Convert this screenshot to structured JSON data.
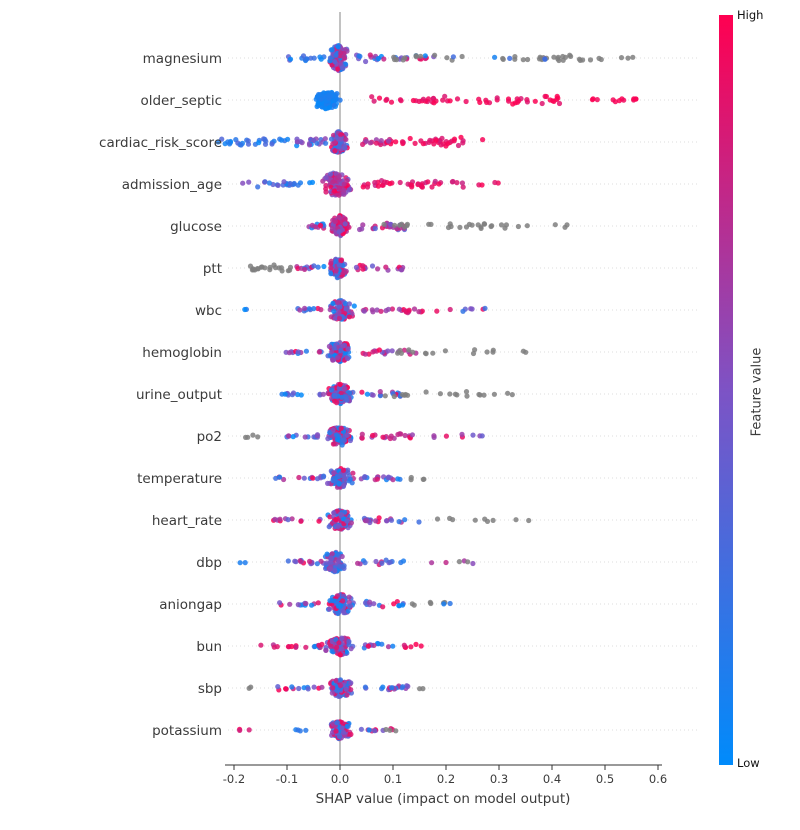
{
  "page": {
    "background": "#ffffff"
  },
  "chart_data": {
    "type": "scatter",
    "variant": "shap-summary-beeswarm",
    "title": "",
    "xlabel": "SHAP value (impact on model output)",
    "ylabel": "",
    "xlim": [
      -0.27,
      0.63
    ],
    "xticks": [
      -0.2,
      -0.1,
      0.0,
      0.1,
      0.2,
      0.3,
      0.4,
      0.5,
      0.6
    ],
    "grid": "dotted-horizontal",
    "zero_line_color": "#999999",
    "gray_color": "#7f7f7f",
    "colorbar": {
      "label": "Feature value",
      "high_label": "High",
      "low_label": "Low",
      "color_high": "#ff0051",
      "color_mid": "#7d53c5",
      "color_low": "#008bfb"
    },
    "features": [
      {
        "name": "magnesium",
        "clusters": [
          {
            "n": 14,
            "x": [
              -0.1,
              -0.03
            ],
            "d": "u",
            "j": 3,
            "v": [
              0,
              0.45
            ]
          },
          {
            "n": 130,
            "x": [
              -0.025,
              0.02
            ],
            "d": "n",
            "j": 13,
            "v": [
              0,
              1
            ]
          },
          {
            "n": 26,
            "x": [
              0.03,
              0.18
            ],
            "d": "u",
            "j": 4,
            "v": [
              0,
              1
            ]
          },
          {
            "n": 40,
            "x": [
              0.1,
              0.5
            ],
            "d": "u",
            "j": 3,
            "v": "gray"
          },
          {
            "n": 5,
            "x": [
              0.2,
              0.42
            ],
            "d": "u",
            "j": 2,
            "v": [
              0,
              0.4
            ]
          },
          {
            "n": 3,
            "x": [
              0.53,
              0.585
            ],
            "d": "u",
            "j": 1,
            "v": "gray"
          }
        ]
      },
      {
        "name": "older_septic",
        "clusters": [
          {
            "n": 120,
            "x": [
              -0.055,
              0.005
            ],
            "d": "n",
            "j": 9,
            "v": [
              0,
              0.15
            ]
          },
          {
            "n": 55,
            "x": [
              0.05,
              0.42
            ],
            "d": "u",
            "j": 4,
            "v": [
              0.85,
              1
            ]
          },
          {
            "n": 12,
            "x": [
              0.43,
              0.57
            ],
            "d": "u",
            "j": 2,
            "v": [
              0.9,
              1
            ]
          }
        ]
      },
      {
        "name": "cardiac_risk_score",
        "clusters": [
          {
            "n": 28,
            "x": [
              -0.23,
              -0.1
            ],
            "d": "u",
            "j": 4,
            "v": [
              0,
              0.35
            ]
          },
          {
            "n": 22,
            "x": [
              -0.1,
              -0.025
            ],
            "d": "u",
            "j": 4,
            "v": [
              0,
              0.6
            ]
          },
          {
            "n": 95,
            "x": [
              -0.025,
              0.02
            ],
            "d": "n",
            "j": 11,
            "v": [
              0,
              1
            ]
          },
          {
            "n": 22,
            "x": [
              0.04,
              0.12
            ],
            "d": "u",
            "j": 3,
            "v": [
              0.6,
              1
            ]
          },
          {
            "n": 30,
            "x": [
              0.13,
              0.27
            ],
            "d": "u",
            "j": 5,
            "v": [
              0.8,
              1
            ]
          }
        ]
      },
      {
        "name": "admission_age",
        "clusters": [
          {
            "n": 24,
            "x": [
              -0.2,
              -0.05
            ],
            "d": "u",
            "j": 3,
            "v": [
              0,
              0.6
            ]
          },
          {
            "n": 115,
            "x": [
              -0.04,
              0.03
            ],
            "d": "n",
            "j": 12,
            "v": [
              0.4,
              1
            ]
          },
          {
            "n": 40,
            "x": [
              0.04,
              0.24
            ],
            "d": "u",
            "j": 4,
            "v": [
              0.75,
              1
            ]
          },
          {
            "n": 4,
            "x": [
              0.25,
              0.3
            ],
            "d": "u",
            "j": 2,
            "v": [
              0.85,
              1
            ]
          }
        ]
      },
      {
        "name": "glucose",
        "clusters": [
          {
            "n": 12,
            "x": [
              -0.06,
              -0.02
            ],
            "d": "u",
            "j": 3,
            "v": [
              0,
              1
            ]
          },
          {
            "n": 105,
            "x": [
              -0.02,
              0.02
            ],
            "d": "n",
            "j": 11,
            "v": [
              0.4,
              1
            ]
          },
          {
            "n": 28,
            "x": [
              0.03,
              0.13
            ],
            "d": "u",
            "j": 4,
            "v": [
              0.3,
              1
            ]
          },
          {
            "n": 26,
            "x": [
              0.08,
              0.32
            ],
            "d": "u",
            "j": 3,
            "v": "gray"
          },
          {
            "n": 5,
            "x": [
              0.33,
              0.46
            ],
            "d": "u",
            "j": 2,
            "v": "gray"
          }
        ]
      },
      {
        "name": "ptt",
        "clusters": [
          {
            "n": 20,
            "x": [
              -0.17,
              -0.09
            ],
            "d": "u",
            "j": 4,
            "v": "gray"
          },
          {
            "n": 12,
            "x": [
              -0.085,
              -0.03
            ],
            "d": "u",
            "j": 3,
            "v": [
              0,
              1
            ]
          },
          {
            "n": 95,
            "x": [
              -0.025,
              0.02
            ],
            "d": "n",
            "j": 10,
            "v": [
              0,
              1
            ]
          },
          {
            "n": 18,
            "x": [
              0.03,
              0.12
            ],
            "d": "u",
            "j": 3,
            "v": [
              0.4,
              1
            ]
          }
        ]
      },
      {
        "name": "wbc",
        "clusters": [
          {
            "n": 2,
            "x": [
              -0.18,
              -0.165
            ],
            "d": "u",
            "j": 1,
            "v": [
              0,
              0.2
            ]
          },
          {
            "n": 10,
            "x": [
              -0.08,
              -0.03
            ],
            "d": "u",
            "j": 2,
            "v": [
              0,
              1
            ]
          },
          {
            "n": 95,
            "x": [
              -0.03,
              0.03
            ],
            "d": "n",
            "j": 10,
            "v": [
              0,
              1
            ]
          },
          {
            "n": 22,
            "x": [
              0.04,
              0.16
            ],
            "d": "u",
            "j": 3,
            "v": [
              0.5,
              1
            ]
          },
          {
            "n": 8,
            "x": [
              0.18,
              0.28
            ],
            "d": "u",
            "j": 3,
            "v": [
              0,
              1
            ]
          }
        ]
      },
      {
        "name": "hemoglobin",
        "clusters": [
          {
            "n": 12,
            "x": [
              -0.11,
              -0.03
            ],
            "d": "u",
            "j": 2,
            "v": [
              0,
              1
            ]
          },
          {
            "n": 95,
            "x": [
              -0.03,
              0.03
            ],
            "d": "n",
            "j": 10,
            "v": [
              0,
              1
            ]
          },
          {
            "n": 18,
            "x": [
              0.04,
              0.15
            ],
            "d": "u",
            "j": 3,
            "v": [
              0.4,
              1
            ]
          },
          {
            "n": 14,
            "x": [
              0.1,
              0.3
            ],
            "d": "u",
            "j": 3,
            "v": "gray"
          },
          {
            "n": 2,
            "x": [
              0.33,
              0.36
            ],
            "d": "u",
            "j": 1,
            "v": "gray"
          }
        ]
      },
      {
        "name": "urine_output",
        "clusters": [
          {
            "n": 12,
            "x": [
              -0.11,
              -0.03
            ],
            "d": "u",
            "j": 2,
            "v": [
              0,
              0.7
            ]
          },
          {
            "n": 95,
            "x": [
              -0.03,
              0.03
            ],
            "d": "n",
            "j": 10,
            "v": [
              0,
              1
            ]
          },
          {
            "n": 14,
            "x": [
              0.04,
              0.12
            ],
            "d": "u",
            "j": 3,
            "v": [
              0,
              1
            ]
          },
          {
            "n": 16,
            "x": [
              0.08,
              0.28
            ],
            "d": "u",
            "j": 3,
            "v": "gray"
          },
          {
            "n": 3,
            "x": [
              0.29,
              0.33
            ],
            "d": "u",
            "j": 1,
            "v": "gray"
          }
        ]
      },
      {
        "name": "po2",
        "clusters": [
          {
            "n": 4,
            "x": [
              -0.18,
              -0.15
            ],
            "d": "u",
            "j": 2,
            "v": "gray"
          },
          {
            "n": 12,
            "x": [
              -0.1,
              -0.03
            ],
            "d": "u",
            "j": 2,
            "v": [
              0,
              1
            ]
          },
          {
            "n": 95,
            "x": [
              -0.03,
              0.03
            ],
            "d": "n",
            "j": 10,
            "v": [
              0,
              1
            ]
          },
          {
            "n": 22,
            "x": [
              0.04,
              0.18
            ],
            "d": "u",
            "j": 3,
            "v": [
              0.55,
              1
            ]
          },
          {
            "n": 6,
            "x": [
              0.19,
              0.27
            ],
            "d": "u",
            "j": 2,
            "v": [
              0.4,
              1
            ]
          }
        ]
      },
      {
        "name": "temperature",
        "clusters": [
          {
            "n": 14,
            "x": [
              -0.15,
              -0.03
            ],
            "d": "u",
            "j": 2,
            "v": [
              0,
              1
            ]
          },
          {
            "n": 95,
            "x": [
              -0.03,
              0.03
            ],
            "d": "n",
            "j": 10,
            "v": [
              0,
              1
            ]
          },
          {
            "n": 16,
            "x": [
              0.04,
              0.12
            ],
            "d": "u",
            "j": 3,
            "v": [
              0,
              1
            ]
          },
          {
            "n": 4,
            "x": [
              0.13,
              0.18
            ],
            "d": "u",
            "j": 2,
            "v": "gray"
          }
        ]
      },
      {
        "name": "heart_rate",
        "clusters": [
          {
            "n": 12,
            "x": [
              -0.13,
              -0.03
            ],
            "d": "u",
            "j": 2,
            "v": [
              0.3,
              1
            ]
          },
          {
            "n": 95,
            "x": [
              -0.03,
              0.03
            ],
            "d": "n",
            "j": 10,
            "v": [
              0,
              1
            ]
          },
          {
            "n": 20,
            "x": [
              0.04,
              0.15
            ],
            "d": "u",
            "j": 3,
            "v": [
              0,
              1
            ]
          },
          {
            "n": 7,
            "x": [
              0.18,
              0.3
            ],
            "d": "u",
            "j": 2,
            "v": "gray"
          },
          {
            "n": 2,
            "x": [
              0.33,
              0.37
            ],
            "d": "u",
            "j": 1,
            "v": "gray"
          }
        ]
      },
      {
        "name": "dbp",
        "clusters": [
          {
            "n": 2,
            "x": [
              -0.19,
              -0.175
            ],
            "d": "u",
            "j": 1,
            "v": [
              0,
              0.2
            ]
          },
          {
            "n": 15,
            "x": [
              -0.1,
              -0.03
            ],
            "d": "u",
            "j": 2,
            "v": [
              0,
              1
            ]
          },
          {
            "n": 95,
            "x": [
              -0.04,
              0.02
            ],
            "d": "n",
            "j": 10,
            "v": [
              0,
              0.7
            ]
          },
          {
            "n": 14,
            "x": [
              0.03,
              0.12
            ],
            "d": "u",
            "j": 3,
            "v": [
              0,
              1
            ]
          },
          {
            "n": 4,
            "x": [
              0.15,
              0.26
            ],
            "d": "u",
            "j": 2,
            "v": [
              0.5,
              1
            ]
          },
          {
            "n": 2,
            "x": [
              0.2,
              0.25
            ],
            "d": "u",
            "j": 1,
            "v": "gray"
          }
        ]
      },
      {
        "name": "aniongap",
        "clusters": [
          {
            "n": 12,
            "x": [
              -0.12,
              -0.03
            ],
            "d": "u",
            "j": 2,
            "v": [
              0,
              1
            ]
          },
          {
            "n": 95,
            "x": [
              -0.03,
              0.03
            ],
            "d": "n",
            "j": 10,
            "v": [
              0,
              1
            ]
          },
          {
            "n": 14,
            "x": [
              0.04,
              0.12
            ],
            "d": "u",
            "j": 3,
            "v": [
              0,
              1
            ]
          },
          {
            "n": 6,
            "x": [
              0.13,
              0.22
            ],
            "d": "u",
            "j": 2,
            "v": "gray"
          },
          {
            "n": 2,
            "x": [
              0.19,
              0.22
            ],
            "d": "u",
            "j": 1,
            "v": [
              0,
              0.2
            ]
          }
        ]
      },
      {
        "name": "bun",
        "clusters": [
          {
            "n": 10,
            "x": [
              -0.15,
              -0.08
            ],
            "d": "u",
            "j": 2,
            "v": [
              0.7,
              1
            ]
          },
          {
            "n": 8,
            "x": [
              -0.07,
              -0.03
            ],
            "d": "u",
            "j": 2,
            "v": [
              0,
              1
            ]
          },
          {
            "n": 90,
            "x": [
              -0.03,
              0.03
            ],
            "d": "n",
            "j": 9,
            "v": [
              0,
              1
            ]
          },
          {
            "n": 12,
            "x": [
              0.04,
              0.1
            ],
            "d": "u",
            "j": 3,
            "v": [
              0,
              1
            ]
          },
          {
            "n": 6,
            "x": [
              0.11,
              0.16
            ],
            "d": "u",
            "j": 2,
            "v": [
              0.75,
              1
            ]
          }
        ]
      },
      {
        "name": "sbp",
        "clusters": [
          {
            "n": 2,
            "x": [
              -0.18,
              -0.165
            ],
            "d": "u",
            "j": 1,
            "v": "gray"
          },
          {
            "n": 14,
            "x": [
              -0.12,
              -0.03
            ],
            "d": "u",
            "j": 2,
            "v": [
              0,
              1
            ]
          },
          {
            "n": 90,
            "x": [
              -0.03,
              0.03
            ],
            "d": "n",
            "j": 9,
            "v": [
              0,
              1
            ]
          },
          {
            "n": 18,
            "x": [
              0.04,
              0.13
            ],
            "d": "u",
            "j": 3,
            "v": [
              0,
              1
            ]
          },
          {
            "n": 2,
            "x": [
              0.15,
              0.17
            ],
            "d": "u",
            "j": 1,
            "v": "gray"
          }
        ]
      },
      {
        "name": "potassium",
        "clusters": [
          {
            "n": 3,
            "x": [
              -0.21,
              -0.17
            ],
            "d": "u",
            "j": 1,
            "v": [
              0.8,
              1
            ]
          },
          {
            "n": 4,
            "x": [
              -0.09,
              -0.06
            ],
            "d": "u",
            "j": 1,
            "v": [
              0,
              0.3
            ]
          },
          {
            "n": 90,
            "x": [
              -0.03,
              0.03
            ],
            "d": "n",
            "j": 9,
            "v": [
              0,
              1
            ]
          },
          {
            "n": 10,
            "x": [
              0.04,
              0.1
            ],
            "d": "u",
            "j": 2,
            "v": [
              0,
              1
            ]
          },
          {
            "n": 3,
            "x": [
              0.08,
              0.12
            ],
            "d": "u",
            "j": 1,
            "v": "gray"
          }
        ]
      }
    ]
  }
}
